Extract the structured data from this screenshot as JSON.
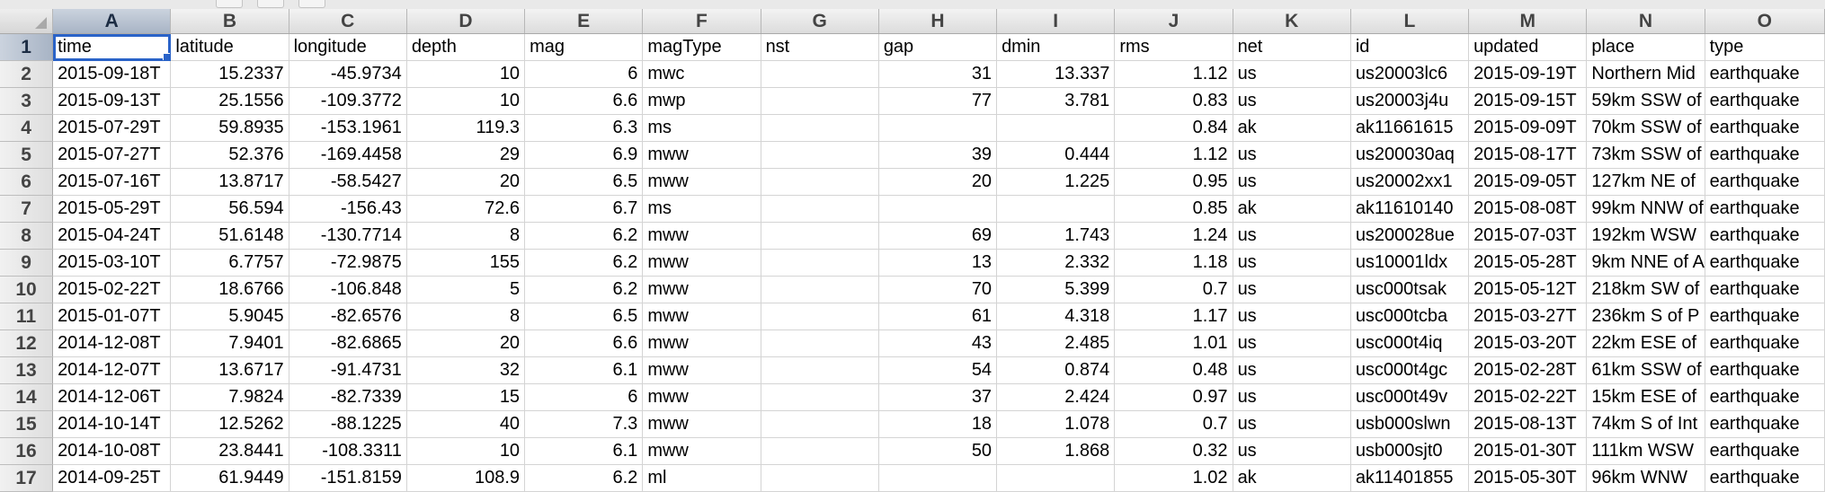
{
  "columns": [
    "A",
    "B",
    "C",
    "D",
    "E",
    "F",
    "G",
    "H",
    "I",
    "J",
    "K",
    "L",
    "M",
    "N",
    "O"
  ],
  "column_align": [
    "txt",
    "num",
    "num",
    "num",
    "num",
    "txt",
    "txt",
    "num",
    "num",
    "num",
    "txt",
    "txt",
    "txt",
    "txt",
    "txt"
  ],
  "header_row": [
    "time",
    "latitude",
    "longitude",
    "depth",
    "mag",
    "magType",
    "nst",
    "gap",
    "dmin",
    "rms",
    "net",
    "id",
    "updated",
    "place",
    "type"
  ],
  "rows": [
    [
      "2015-09-18T",
      "15.2337",
      "-45.9734",
      "10",
      "6",
      "mwc",
      "",
      "31",
      "13.337",
      "1.12",
      "us",
      "us20003lc6",
      "2015-09-19T",
      "Northern Mid",
      "earthquake"
    ],
    [
      "2015-09-13T",
      "25.1556",
      "-109.3772",
      "10",
      "6.6",
      "mwp",
      "",
      "77",
      "3.781",
      "0.83",
      "us",
      "us20003j4u",
      "2015-09-15T",
      "59km SSW of",
      "earthquake"
    ],
    [
      "2015-07-29T",
      "59.8935",
      "-153.1961",
      "119.3",
      "6.3",
      "ms",
      "",
      "",
      "",
      "0.84",
      "ak",
      "ak11661615",
      "2015-09-09T",
      "70km SSW of",
      "earthquake"
    ],
    [
      "2015-07-27T",
      "52.376",
      "-169.4458",
      "29",
      "6.9",
      "mww",
      "",
      "39",
      "0.444",
      "1.12",
      "us",
      "us200030aq",
      "2015-08-17T",
      "73km SSW of",
      "earthquake"
    ],
    [
      "2015-07-16T",
      "13.8717",
      "-58.5427",
      "20",
      "6.5",
      "mww",
      "",
      "20",
      "1.225",
      "0.95",
      "us",
      "us20002xx1",
      "2015-09-05T",
      "127km NE of",
      "earthquake"
    ],
    [
      "2015-05-29T",
      "56.594",
      "-156.43",
      "72.6",
      "6.7",
      "ms",
      "",
      "",
      "",
      "0.85",
      "ak",
      "ak11610140",
      "2015-08-08T",
      "99km NNW of",
      "earthquake"
    ],
    [
      "2015-04-24T",
      "51.6148",
      "-130.7714",
      "8",
      "6.2",
      "mww",
      "",
      "69",
      "1.743",
      "1.24",
      "us",
      "us200028ue",
      "2015-07-03T",
      "192km WSW",
      "earthquake"
    ],
    [
      "2015-03-10T",
      "6.7757",
      "-72.9875",
      "155",
      "6.2",
      "mww",
      "",
      "13",
      "2.332",
      "1.18",
      "us",
      "us10001ldx",
      "2015-05-28T",
      "9km NNE of A",
      "earthquake"
    ],
    [
      "2015-02-22T",
      "18.6766",
      "-106.848",
      "5",
      "6.2",
      "mww",
      "",
      "70",
      "5.399",
      "0.7",
      "us",
      "usc000tsak",
      "2015-05-12T",
      "218km SW of",
      "earthquake"
    ],
    [
      "2015-01-07T",
      "5.9045",
      "-82.6576",
      "8",
      "6.5",
      "mww",
      "",
      "61",
      "4.318",
      "1.17",
      "us",
      "usc000tcba",
      "2015-03-27T",
      "236km S of P",
      "earthquake"
    ],
    [
      "2014-12-08T",
      "7.9401",
      "-82.6865",
      "20",
      "6.6",
      "mww",
      "",
      "43",
      "2.485",
      "1.01",
      "us",
      "usc000t4iq",
      "2015-03-20T",
      "22km ESE of",
      "earthquake"
    ],
    [
      "2014-12-07T",
      "13.6717",
      "-91.4731",
      "32",
      "6.1",
      "mww",
      "",
      "54",
      "0.874",
      "0.48",
      "us",
      "usc000t4gc",
      "2015-02-28T",
      "61km SSW of",
      "earthquake"
    ],
    [
      "2014-12-06T",
      "7.9824",
      "-82.7339",
      "15",
      "6",
      "mww",
      "",
      "37",
      "2.424",
      "0.97",
      "us",
      "usc000t49v",
      "2015-02-22T",
      "15km ESE of",
      "earthquake"
    ],
    [
      "2014-10-14T",
      "12.5262",
      "-88.1225",
      "40",
      "7.3",
      "mww",
      "",
      "18",
      "1.078",
      "0.7",
      "us",
      "usb000slwn",
      "2015-08-13T",
      "74km S of Int",
      "earthquake"
    ],
    [
      "2014-10-08T",
      "23.8441",
      "-108.3311",
      "10",
      "6.1",
      "mww",
      "",
      "50",
      "1.868",
      "0.32",
      "us",
      "usb000sjt0",
      "2015-01-30T",
      "111km WSW",
      "earthquake"
    ],
    [
      "2014-09-25T",
      "61.9449",
      "-151.8159",
      "108.9",
      "6.2",
      "ml",
      "",
      "",
      "",
      "1.02",
      "ak",
      "ak11401855",
      "2015-05-30T",
      "96km WNW",
      "earthquake"
    ]
  ],
  "selection": {
    "active_cell": "A1",
    "active_column": "A",
    "active_row": "1"
  },
  "colors": {
    "selection_border": "#2a63c8",
    "header_bg": "#dcdcdc",
    "selected_header_bg": "#a8b4c5",
    "grid_line": "#d4d4d4"
  }
}
